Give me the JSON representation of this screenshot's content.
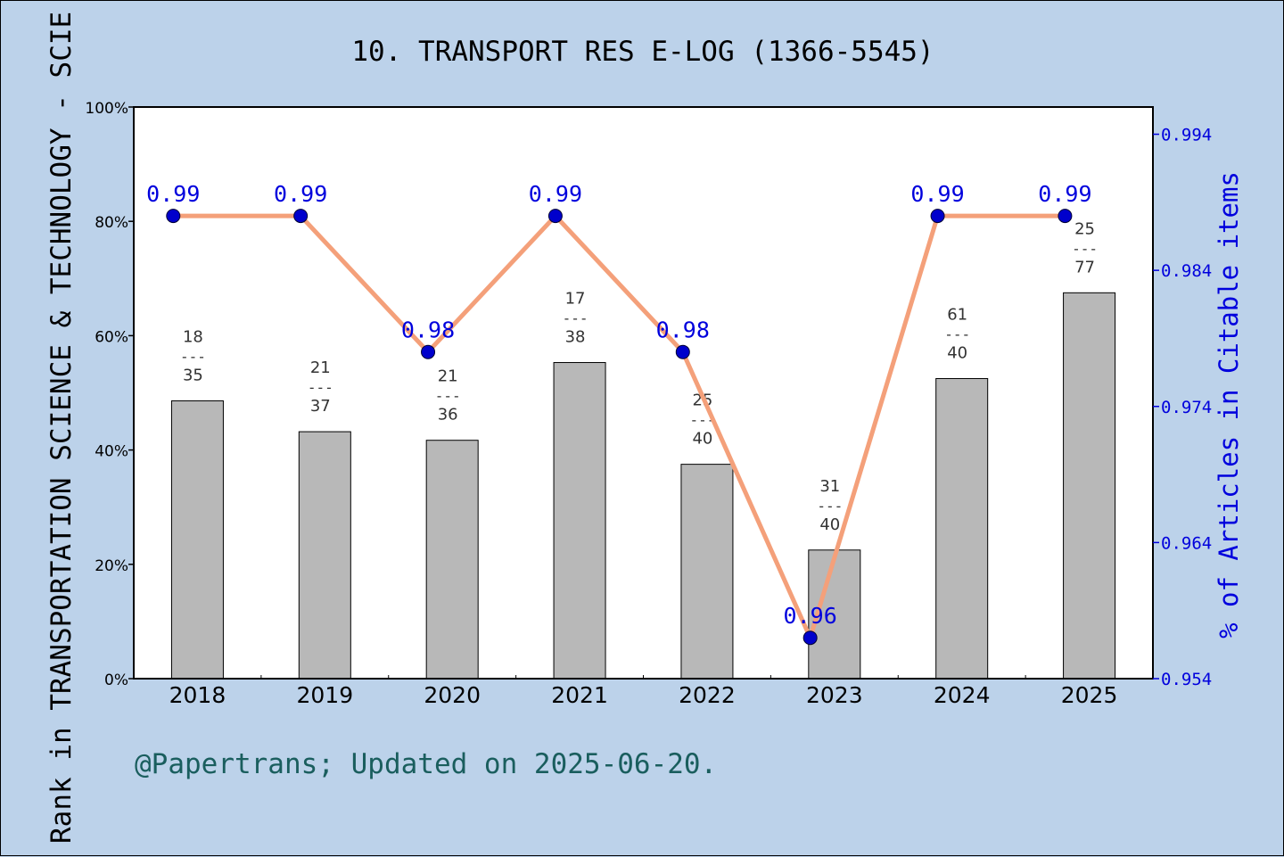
{
  "chart_data": {
    "type": "bar+line",
    "title": "10. TRANSPORT RES E-LOG (1366-5545)",
    "categories": [
      "2018",
      "2019",
      "2020",
      "2021",
      "2022",
      "2023",
      "2024",
      "2025"
    ],
    "bars": {
      "axis": "left",
      "values": [
        48.6,
        43.2,
        41.7,
        55.3,
        37.5,
        22.5,
        52.5,
        67.5
      ],
      "labels": [
        {
          "top": "18",
          "bottom": "35"
        },
        {
          "top": "21",
          "bottom": "37"
        },
        {
          "top": "21",
          "bottom": "36"
        },
        {
          "top": "17",
          "bottom": "38"
        },
        {
          "top": "25",
          "bottom": "40"
        },
        {
          "top": "31",
          "bottom": "40"
        },
        {
          "top": "61",
          "bottom": "40"
        },
        {
          "top": "25",
          "bottom": "77"
        }
      ],
      "separator": "---",
      "color": "#b8b8b8"
    },
    "line": {
      "axis": "right",
      "values": [
        0.988,
        0.988,
        0.978,
        0.988,
        0.978,
        0.957,
        0.988,
        0.988
      ],
      "labels": [
        "0.99",
        "0.99",
        "0.98",
        "0.99",
        "0.98",
        "0.96",
        "0.99",
        "0.99"
      ],
      "line_color": "#f4a07a",
      "marker_color": "#0000cc",
      "label_color": "#0000dd"
    },
    "y_left": {
      "label": "Rank in TRANSPORTATION SCIENCE & TECHNOLOGY - SCIE",
      "ylim": [
        0,
        100
      ],
      "ticks": [
        "0%",
        "20%",
        "40%",
        "60%",
        "80%",
        "100%"
      ],
      "tick_values": [
        0,
        20,
        40,
        60,
        80,
        100
      ]
    },
    "y_right": {
      "label": "% of Articles in Citable items",
      "ylim": [
        0.954,
        0.996
      ],
      "ticks": [
        "0.954",
        "0.964",
        "0.974",
        "0.984",
        "0.994"
      ],
      "tick_values": [
        0.954,
        0.964,
        0.974,
        0.984,
        0.994
      ],
      "color": "#0000dd"
    },
    "footer": "@Papertrans; Updated on 2025-06-20.",
    "footer_color": "#1a5e5e",
    "grid": false
  }
}
